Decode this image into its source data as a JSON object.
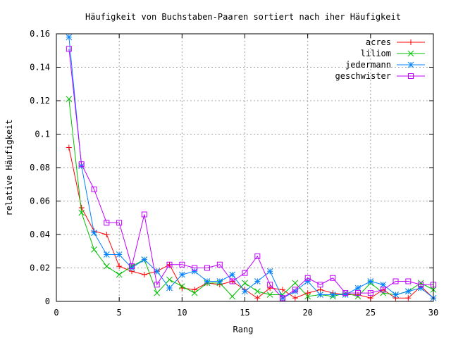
{
  "chart_data": {
    "type": "line",
    "title": "Häufigkeit von Buchstaben-Paaren sortiert nach iher Häufigkeit",
    "xlabel": "Rang",
    "ylabel": "relative Häufigkeit",
    "xlim": [
      0,
      30
    ],
    "ylim": [
      0,
      0.16
    ],
    "xticks": [
      0,
      5,
      10,
      15,
      20,
      25,
      30
    ],
    "yticks": [
      0,
      0.02,
      0.04,
      0.06,
      0.08,
      0.1,
      0.12,
      0.14,
      0.16
    ],
    "xtick_labels": [
      "0",
      "5",
      "10",
      "15",
      "20",
      "25",
      "30"
    ],
    "ytick_labels": [
      "0",
      "0.02",
      "0.04",
      "0.06",
      "0.08",
      "0.1",
      "0.12",
      "0.14",
      "0.16"
    ],
    "grid": true,
    "legend_position": "top-right",
    "x": [
      1,
      2,
      3,
      4,
      5,
      6,
      7,
      8,
      9,
      10,
      11,
      12,
      13,
      14,
      15,
      16,
      17,
      18,
      19,
      20,
      21,
      22,
      23,
      24,
      25,
      26,
      27,
      28,
      29,
      30
    ],
    "series": [
      {
        "name": "acres",
        "color": "#ff0000",
        "marker": "plus",
        "values": [
          0.092,
          0.056,
          0.042,
          0.04,
          0.021,
          0.018,
          0.016,
          0.018,
          0.022,
          0.008,
          0.007,
          0.011,
          0.01,
          0.012,
          0.007,
          0.002,
          0.008,
          0.007,
          0.002,
          0.005,
          0.007,
          0.005,
          0.004,
          0.004,
          0.002,
          0.007,
          0.002,
          0.002,
          0.009,
          0.002
        ]
      },
      {
        "name": "liliom",
        "color": "#00c000",
        "marker": "cross",
        "values": [
          0.121,
          0.053,
          0.031,
          0.021,
          0.016,
          0.021,
          0.025,
          0.005,
          0.013,
          0.009,
          0.005,
          0.011,
          0.011,
          0.003,
          0.011,
          0.006,
          0.004,
          0.004,
          0.011,
          0.003,
          0.004,
          0.003,
          0.005,
          0.003,
          0.011,
          0.005,
          0.004,
          0.006,
          0.011,
          0.007
        ]
      },
      {
        "name": "jedermann",
        "color": "#0080ff",
        "marker": "star",
        "values": [
          0.158,
          0.081,
          0.041,
          0.028,
          0.028,
          0.02,
          0.025,
          0.018,
          0.008,
          0.016,
          0.018,
          0.012,
          0.012,
          0.016,
          0.006,
          0.012,
          0.018,
          0.002,
          0.006,
          0.012,
          0.004,
          0.004,
          0.004,
          0.008,
          0.012,
          0.01,
          0.004,
          0.006,
          0.008,
          0.002
        ]
      },
      {
        "name": "geschwister",
        "color": "#c000ff",
        "marker": "square",
        "values": [
          0.151,
          0.082,
          0.067,
          0.047,
          0.047,
          0.021,
          0.052,
          0.01,
          0.022,
          0.022,
          0.02,
          0.02,
          0.022,
          0.012,
          0.017,
          0.027,
          0.01,
          0.002,
          0.007,
          0.014,
          0.01,
          0.014,
          0.005,
          0.005,
          0.005,
          0.007,
          0.012,
          0.012,
          0.01,
          0.01
        ]
      }
    ]
  }
}
